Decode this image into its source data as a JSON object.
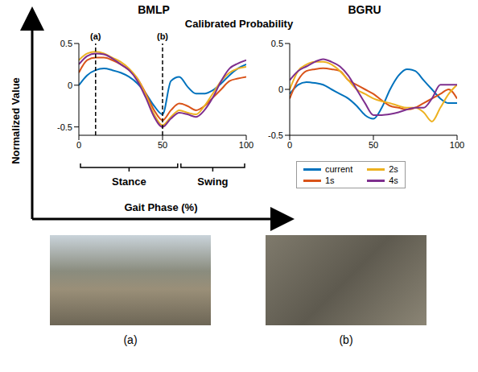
{
  "title": "Calibrated Probability",
  "x_axis_label": "Gait Phase (%)",
  "y_axis_label": "Normalized Value",
  "chart_data": [
    {
      "type": "line",
      "title": "BMLP",
      "x": [
        0,
        5,
        10,
        15,
        20,
        25,
        30,
        35,
        40,
        45,
        50,
        55,
        60,
        65,
        70,
        75,
        80,
        85,
        90,
        95,
        100
      ],
      "series": [
        {
          "name": "current",
          "color": "#0072BD",
          "values": [
            0.0,
            0.12,
            0.18,
            0.2,
            0.18,
            0.15,
            0.1,
            0.02,
            -0.1,
            -0.25,
            -0.35,
            0.05,
            0.1,
            -0.02,
            -0.1,
            -0.1,
            -0.06,
            0.02,
            0.12,
            0.2,
            0.25
          ]
        },
        {
          "name": "1s",
          "color": "#D95319",
          "values": [
            0.15,
            0.3,
            0.33,
            0.33,
            0.3,
            0.25,
            0.18,
            0.08,
            -0.1,
            -0.3,
            -0.42,
            -0.3,
            -0.22,
            -0.25,
            -0.3,
            -0.25,
            -0.15,
            -0.05,
            0.05,
            0.08,
            0.1
          ]
        },
        {
          "name": "2s",
          "color": "#EDB120",
          "values": [
            0.3,
            0.38,
            0.4,
            0.38,
            0.33,
            0.28,
            0.2,
            0.08,
            -0.12,
            -0.35,
            -0.48,
            -0.38,
            -0.3,
            -0.33,
            -0.35,
            -0.25,
            -0.1,
            0.05,
            0.15,
            0.2,
            0.22
          ]
        },
        {
          "name": "4s",
          "color": "#7E2F8E",
          "values": [
            0.25,
            0.35,
            0.38,
            0.37,
            0.32,
            0.25,
            0.18,
            0.05,
            -0.15,
            -0.38,
            -0.5,
            -0.4,
            -0.33,
            -0.35,
            -0.38,
            -0.3,
            -0.15,
            0.05,
            0.2,
            0.26,
            0.3
          ]
        }
      ],
      "xlim": [
        0,
        100
      ],
      "xticks": [
        0,
        50,
        100
      ],
      "ylim": [
        -0.6,
        0.5
      ],
      "yticks": [
        -0.5,
        0,
        0.5
      ],
      "annotations": [
        {
          "x": 10,
          "label": "(a)",
          "line_style": "dashed"
        },
        {
          "x": 50,
          "label": "(b)",
          "line_style": "dashed"
        }
      ],
      "phases": [
        {
          "label": "Stance",
          "start": 0,
          "end": 60
        },
        {
          "label": "Swing",
          "start": 60,
          "end": 100
        }
      ]
    },
    {
      "type": "line",
      "title": "BGRU",
      "x": [
        0,
        5,
        10,
        15,
        20,
        25,
        30,
        35,
        40,
        45,
        50,
        55,
        60,
        65,
        70,
        75,
        80,
        85,
        90,
        95,
        100
      ],
      "series": [
        {
          "name": "current",
          "color": "#0072BD",
          "values": [
            -0.05,
            0.05,
            0.08,
            0.07,
            0.05,
            0.0,
            -0.05,
            -0.1,
            -0.18,
            -0.28,
            -0.32,
            -0.2,
            0.0,
            0.15,
            0.22,
            0.2,
            0.1,
            0.0,
            -0.1,
            -0.15,
            -0.15
          ]
        },
        {
          "name": "1s",
          "color": "#D95319",
          "values": [
            -0.1,
            0.1,
            0.2,
            0.22,
            0.23,
            0.22,
            0.2,
            0.1,
            0.05,
            0.0,
            -0.05,
            -0.12,
            -0.18,
            -0.2,
            -0.22,
            -0.2,
            -0.15,
            -0.1,
            -0.05,
            0.0,
            -0.1
          ]
        },
        {
          "name": "2s",
          "color": "#EDB120",
          "values": [
            0.0,
            0.2,
            0.27,
            0.3,
            0.3,
            0.27,
            0.2,
            0.1,
            0.0,
            -0.05,
            -0.1,
            -0.13,
            -0.15,
            -0.18,
            -0.2,
            -0.2,
            -0.25,
            -0.35,
            -0.2,
            -0.05,
            0.05
          ]
        },
        {
          "name": "4s",
          "color": "#7E2F8E",
          "values": [
            0.1,
            0.2,
            0.25,
            0.3,
            0.33,
            0.3,
            0.25,
            0.15,
            0.0,
            -0.15,
            -0.28,
            -0.28,
            -0.27,
            -0.25,
            -0.22,
            -0.2,
            -0.2,
            -0.1,
            0.05,
            0.05,
            0.05
          ]
        }
      ],
      "xlim": [
        0,
        100
      ],
      "xticks": [
        0,
        50,
        100
      ],
      "ylim": [
        -0.5,
        0.5
      ],
      "yticks": [
        -0.5,
        0,
        0.5
      ],
      "legend": "bottom"
    }
  ],
  "images": [
    {
      "label": "(a)"
    },
    {
      "label": "(b)"
    }
  ]
}
